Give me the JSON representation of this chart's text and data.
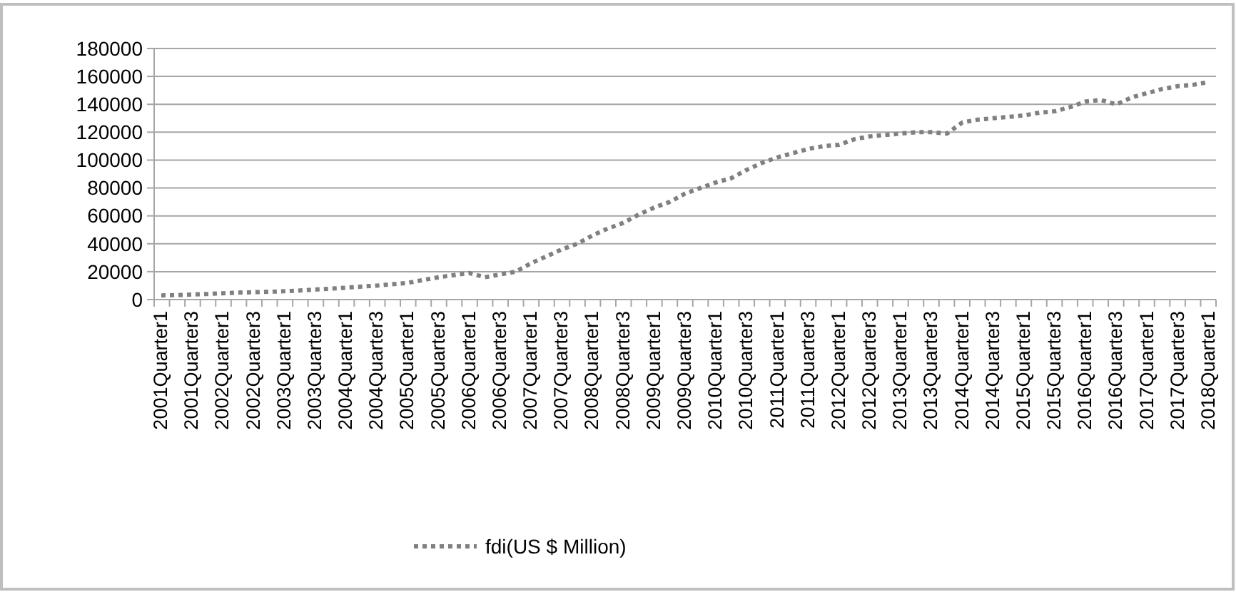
{
  "chart_data": {
    "type": "line",
    "categories": [
      "2001Quarter1",
      null,
      "2001Quarter3",
      null,
      "2002Quarter1",
      null,
      "2002Quarter3",
      null,
      "2003Quarter1",
      null,
      "2003Quarter3",
      null,
      "2004Quarter1",
      null,
      "2004Quarter3",
      null,
      "2005Quarter1",
      null,
      "2005Quarter3",
      null,
      "2006Quarter1",
      null,
      "2006Quarter3",
      null,
      "2007Quarter1",
      null,
      "2007Quarter3",
      null,
      "2008Quarter1",
      null,
      "2008Quarter3",
      null,
      "2009Quarter1",
      null,
      "2009Quarter3",
      null,
      "2010Quarter1",
      null,
      "2010Quarter3",
      null,
      "2011Quarter1",
      null,
      "2011Quarter3",
      null,
      "2012Quarter1",
      null,
      "2012Quarter3",
      null,
      "2013Quarter1",
      null,
      "2013Quarter3",
      null,
      "2014Quarter1",
      null,
      "2014Quarter3",
      null,
      "2015Quarter1",
      null,
      "2015Quarter3",
      null,
      "2016Quarter1",
      null,
      "2016Quarter3",
      null,
      "2017Quarter1",
      null,
      "2017Quarter3",
      null,
      "2018Quarter1"
    ],
    "series": [
      {
        "name": "fdi(US $ Million)",
        "color": "#808080",
        "values": [
          3000,
          3200,
          3600,
          4000,
          4500,
          5000,
          5300,
          5600,
          6000,
          6500,
          7200,
          7800,
          8500,
          9300,
          10000,
          11000,
          12000,
          14000,
          16000,
          17500,
          19000,
          16000,
          18000,
          20000,
          26000,
          31000,
          36000,
          40000,
          46000,
          51000,
          55000,
          61000,
          66000,
          70000,
          76000,
          80000,
          84000,
          87000,
          93000,
          98000,
          102000,
          105000,
          108000,
          110000,
          111000,
          115000,
          117000,
          118000,
          119000,
          120000,
          120000,
          119000,
          127000,
          129000,
          130000,
          131000,
          132000,
          134000,
          135000,
          138000,
          142000,
          143000,
          140000,
          145000,
          148000,
          151000,
          153000,
          154000,
          156000
        ]
      }
    ],
    "ylim": [
      0,
      180000
    ],
    "yticks": [
      0,
      20000,
      40000,
      60000,
      80000,
      100000,
      120000,
      140000,
      160000,
      180000
    ],
    "grid": "y",
    "legend": "bottom",
    "line_style": "dotted",
    "marker": "none"
  }
}
